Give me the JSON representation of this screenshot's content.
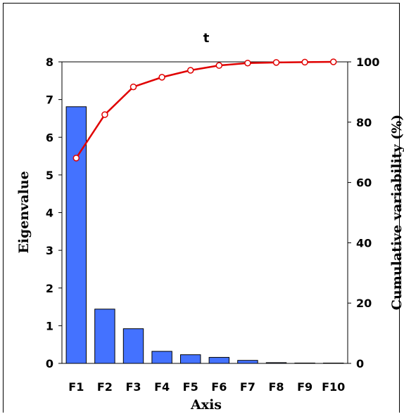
{
  "chart_data": {
    "type": "bar+line",
    "title": "t",
    "xlabel": "Axis",
    "ylabel_left": "Eigenvalue",
    "ylabel_right": "Cumulative variability (%)",
    "categories": [
      "F1",
      "F2",
      "F3",
      "F4",
      "F5",
      "F6",
      "F7",
      "F8",
      "F9",
      "F10"
    ],
    "ylim_left": [
      0,
      8
    ],
    "ylim_right": [
      0,
      100
    ],
    "yticks_left": [
      "0",
      "1",
      "2",
      "3",
      "4",
      "5",
      "6",
      "7",
      "8"
    ],
    "yticks_right": [
      "0",
      "20",
      "40",
      "60",
      "80",
      "100"
    ],
    "series": [
      {
        "axis": "left",
        "kind": "bar",
        "color": "#4472ff",
        "values": [
          6.81,
          1.44,
          0.92,
          0.32,
          0.23,
          0.16,
          0.08,
          0.02,
          0.01,
          0.0
        ]
      },
      {
        "axis": "right",
        "kind": "line",
        "color": "#e00000",
        "values": [
          68.1,
          82.5,
          91.7,
          94.9,
          97.2,
          98.8,
          99.6,
          99.8,
          99.9,
          100
        ]
      }
    ],
    "grid": false,
    "legend": "none"
  }
}
